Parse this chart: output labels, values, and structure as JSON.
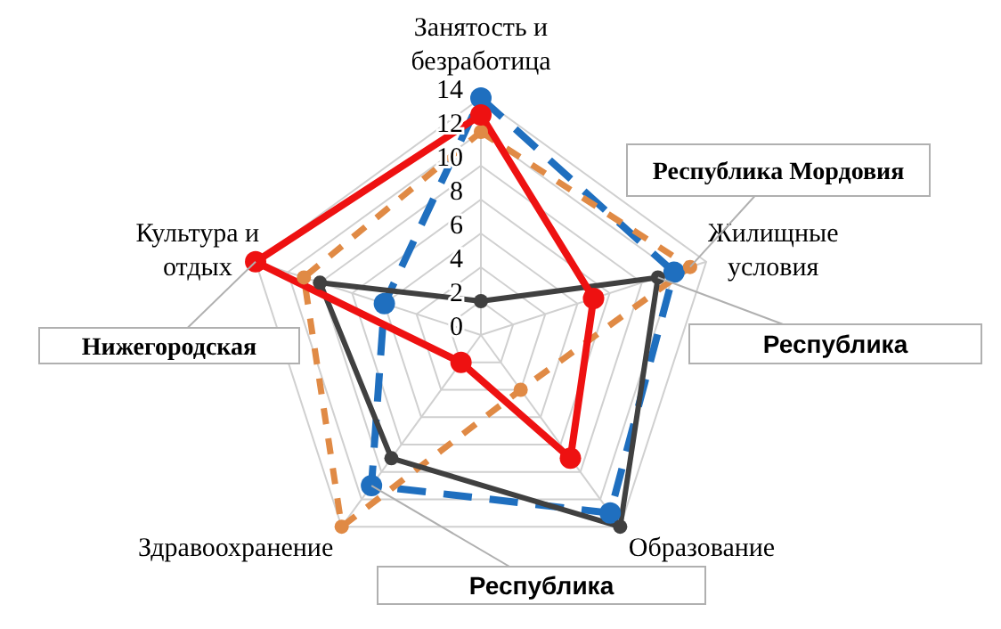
{
  "chart_data": {
    "type": "radar",
    "categories": [
      "Занятость и безработица",
      "Жилищные условия",
      "Образование",
      "Здравоохранение",
      "Культура и отдых"
    ],
    "series": [
      {
        "name": "Республика",
        "color": "#1f6fbf",
        "line_style": "dashed",
        "values": [
          14,
          12,
          13,
          11,
          6
        ]
      },
      {
        "name": "Республика Мордовия",
        "color": "#e08a45",
        "line_style": "dashed",
        "values": [
          12,
          13,
          4,
          14,
          11
        ]
      },
      {
        "name": "Республика",
        "color": "#404040",
        "line_style": "solid",
        "values": [
          2,
          11,
          14,
          9,
          10
        ]
      },
      {
        "name": "Нижегородская",
        "color": "#ee1111",
        "line_style": "solid",
        "values": [
          13,
          7,
          9,
          2,
          14
        ]
      }
    ],
    "ylim": [
      0,
      14
    ],
    "yticks": [
      0,
      2,
      4,
      6,
      8,
      10,
      12,
      14
    ],
    "grid": true,
    "marker": "circle",
    "legend": false
  }
}
